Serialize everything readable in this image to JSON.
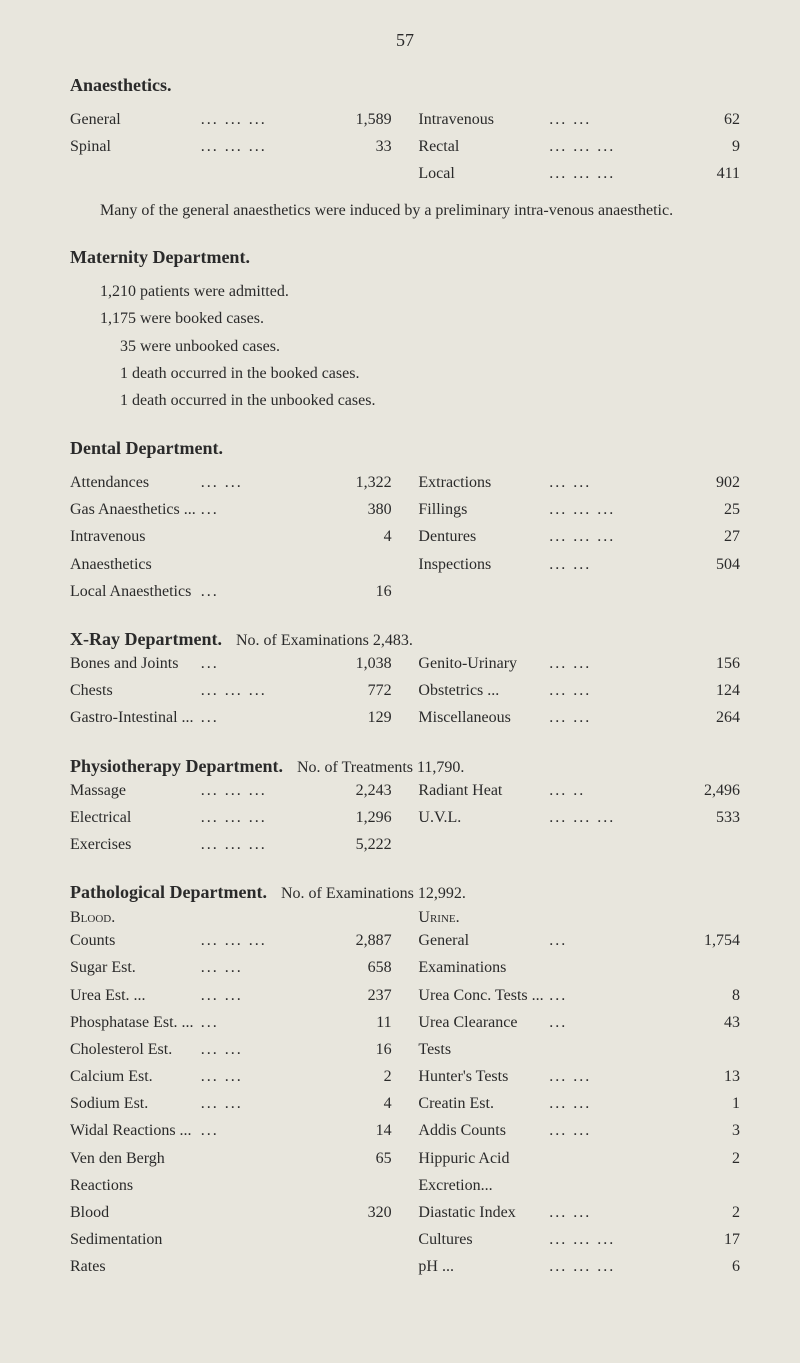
{
  "page_number": "57",
  "anaesthetics": {
    "heading": "Anaesthetics.",
    "left": [
      {
        "label": "General",
        "dots": "...   ...   ...",
        "value": "1,589"
      },
      {
        "label": "Spinal",
        "dots": "...   ...   ...",
        "value": "33"
      }
    ],
    "right": [
      {
        "label": "Intravenous",
        "dots": "...   ...",
        "value": "62"
      },
      {
        "label": "Rectal",
        "dots": "...   ...   ...",
        "value": "9"
      },
      {
        "label": "Local",
        "dots": "...   ...   ...",
        "value": "411"
      }
    ],
    "note": "Many of the general anaesthetics were induced by a preliminary intra-venous anaesthetic."
  },
  "maternity": {
    "heading": "Maternity Department.",
    "lines": [
      "1,210 patients were admitted.",
      "1,175 were booked cases.",
      "35 were unbooked cases.",
      "1 death occurred in the booked cases.",
      "1 death occurred in the unbooked cases."
    ]
  },
  "dental": {
    "heading": "Dental Department.",
    "left": [
      {
        "label": "Attendances",
        "dots": "...   ...",
        "value": "1,322"
      },
      {
        "label": "Gas Anaesthetics ...",
        "dots": "...",
        "value": "380"
      },
      {
        "label": "Intravenous Anaesthetics",
        "dots": "",
        "value": "4"
      },
      {
        "label": "Local Anaesthetics",
        "dots": "...",
        "value": "16"
      }
    ],
    "right": [
      {
        "label": "Extractions",
        "dots": "...   ...",
        "value": "902"
      },
      {
        "label": "Fillings",
        "dots": "...   ...   ...",
        "value": "25"
      },
      {
        "label": "Dentures",
        "dots": "...   ...   ...",
        "value": "27"
      },
      {
        "label": "Inspections",
        "dots": "...   ...",
        "value": "504"
      }
    ]
  },
  "xray": {
    "heading": "X-Ray Department.",
    "subtitle": "No. of Examinations 2,483.",
    "left": [
      {
        "label": "Bones and Joints",
        "dots": "...",
        "value": "1,038"
      },
      {
        "label": "Chests",
        "dots": "...   ...   ...",
        "value": "772"
      },
      {
        "label": "Gastro-Intestinal ...",
        "dots": "...",
        "value": "129"
      }
    ],
    "right": [
      {
        "label": "Genito-Urinary",
        "dots": "...   ...",
        "value": "156"
      },
      {
        "label": "Obstetrics ...",
        "dots": "...   ...",
        "value": "124"
      },
      {
        "label": "Miscellaneous",
        "dots": "...   ...",
        "value": "264"
      }
    ]
  },
  "physio": {
    "heading": "Physiotherapy Department.",
    "subtitle": "No. of Treatments 11,790.",
    "left": [
      {
        "label": "Massage",
        "dots": "...   ...   ...",
        "value": "2,243"
      },
      {
        "label": "Electrical",
        "dots": "...   ...   ...",
        "value": "1,296"
      },
      {
        "label": "Exercises",
        "dots": "...   ...   ...",
        "value": "5,222"
      }
    ],
    "right": [
      {
        "label": "Radiant Heat",
        "dots": "...   ..",
        "value": "2,496"
      },
      {
        "label": "U.V.L.",
        "dots": "...   ...   ...",
        "value": "533"
      }
    ]
  },
  "pathological": {
    "heading": "Pathological Department.",
    "subtitle": "No. of Examinations 12,992.",
    "blood_heading": "Blood.",
    "urine_heading": "Urine.",
    "left": [
      {
        "label": "Counts",
        "dots": "...   ...   ...",
        "value": "2,887"
      },
      {
        "label": "Sugar Est.",
        "dots": "...   ...",
        "value": "658"
      },
      {
        "label": "Urea Est. ...",
        "dots": "...   ...",
        "value": "237"
      },
      {
        "label": "Phosphatase Est. ...",
        "dots": "...",
        "value": "11"
      },
      {
        "label": "Cholesterol Est.",
        "dots": "...   ...",
        "value": "16"
      },
      {
        "label": "Calcium Est.",
        "dots": "...   ...",
        "value": "2"
      },
      {
        "label": "Sodium Est.",
        "dots": "...   ...",
        "value": "4"
      },
      {
        "label": "Widal Reactions ...",
        "dots": "...",
        "value": "14"
      },
      {
        "label": "Ven den Bergh Reactions",
        "dots": "",
        "value": "65"
      },
      {
        "label": "Blood Sedimentation Rates",
        "dots": "",
        "value": "320"
      }
    ],
    "right": [
      {
        "label": "General Examinations",
        "dots": "...",
        "value": "1,754"
      },
      {
        "label": "Urea Conc. Tests ...",
        "dots": "...",
        "value": "8"
      },
      {
        "label": "Urea Clearance Tests",
        "dots": "...",
        "value": "43"
      },
      {
        "label": "Hunter's Tests",
        "dots": "...   ...",
        "value": "13"
      },
      {
        "label": "Creatin Est.",
        "dots": "...   ...",
        "value": "1"
      },
      {
        "label": "Addis Counts",
        "dots": "...   ...",
        "value": "3"
      },
      {
        "label": "Hippuric Acid Excretion...",
        "dots": "",
        "value": "2"
      },
      {
        "label": "Diastatic Index",
        "dots": "...   ...",
        "value": "2"
      },
      {
        "label": "Cultures",
        "dots": "...   ...   ...",
        "value": "17"
      },
      {
        "label": "pH ...",
        "dots": "...   ...   ...",
        "value": "6"
      }
    ]
  }
}
